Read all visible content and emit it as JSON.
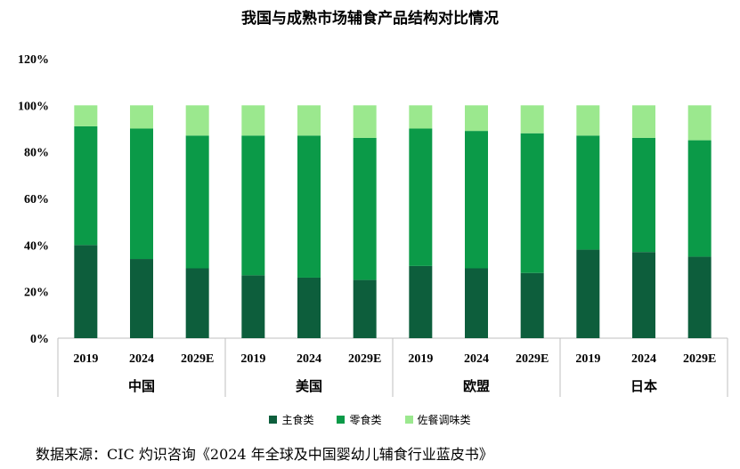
{
  "chart_data": {
    "type": "bar",
    "stacked": true,
    "title": "我国与成熟市场辅食产品结构对比情况",
    "groups": [
      {
        "name": "中国",
        "categories": [
          "2019",
          "2024",
          "2029E"
        ]
      },
      {
        "name": "美国",
        "categories": [
          "2019",
          "2024",
          "2029E"
        ]
      },
      {
        "name": "欧盟",
        "categories": [
          "2019",
          "2024",
          "2029E"
        ]
      },
      {
        "name": "日本",
        "categories": [
          "2019",
          "2024",
          "2029E"
        ]
      }
    ],
    "series": [
      {
        "name": "主食类",
        "color": "#0d5e3c",
        "values": [
          40,
          34,
          30,
          27,
          26,
          25,
          31,
          30,
          28,
          38,
          37,
          35
        ]
      },
      {
        "name": "零食类",
        "color": "#0b9a48",
        "values": [
          51,
          56,
          57,
          60,
          61,
          61,
          59,
          59,
          60,
          49,
          49,
          50
        ]
      },
      {
        "name": "佐餐调味类",
        "color": "#9be88e",
        "values": [
          9,
          10,
          13,
          13,
          13,
          14,
          10,
          11,
          12,
          13,
          14,
          15
        ]
      }
    ],
    "ylim": [
      0,
      120
    ],
    "yticks": [
      "0%",
      "20%",
      "40%",
      "60%",
      "80%",
      "100%",
      "120%"
    ],
    "legend_position": "bottom"
  },
  "source": "数据来源：CIC 灼识咨询《2024 年全球及中国婴幼儿辅食行业蓝皮书》"
}
